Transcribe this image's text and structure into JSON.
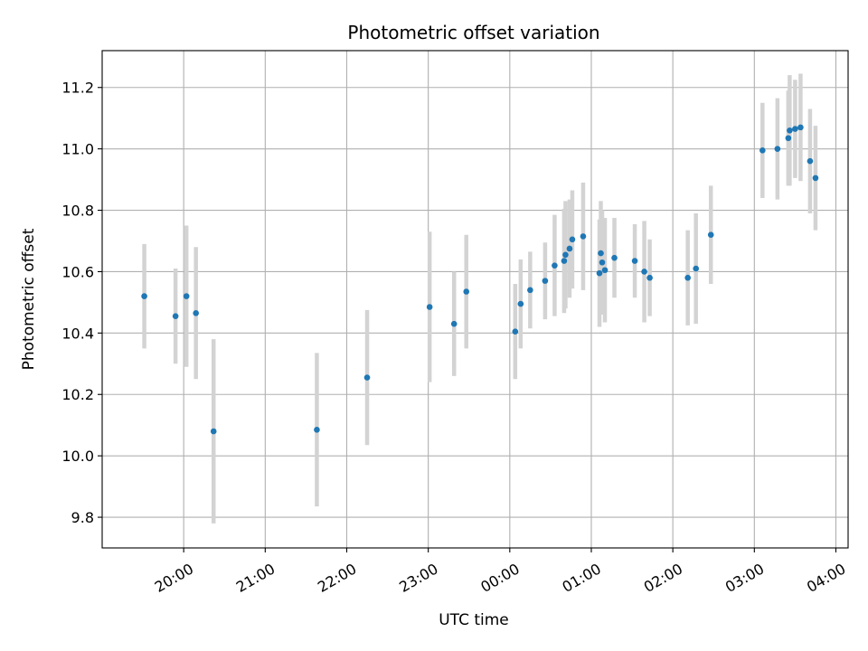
{
  "chart_data": {
    "type": "scatter",
    "title": "Photometric offset variation",
    "xlabel": "UTC time",
    "ylabel": "Photometric offset",
    "x_tick_labels": [
      "20:00",
      "21:00",
      "22:00",
      "23:00",
      "00:00",
      "01:00",
      "02:00",
      "03:00",
      "04:00"
    ],
    "y_tick_labels": [
      "9.8",
      "10.0",
      "10.2",
      "10.4",
      "10.6",
      "10.8",
      "11.0",
      "11.2"
    ],
    "y_ticks": [
      9.8,
      10.0,
      10.2,
      10.4,
      10.6,
      10.8,
      11.0,
      11.2
    ],
    "x_ticks_hours": [
      20,
      21,
      22,
      23,
      24,
      25,
      26,
      27,
      28
    ],
    "xlim_hours": [
      19.0,
      28.15
    ],
    "ylim": [
      9.7,
      11.32
    ],
    "grid": true,
    "point_color": "#1f77b4",
    "errorbar_color": "#d3d3d3",
    "points": [
      {
        "t": "19:31",
        "y": 10.52,
        "err": 0.17
      },
      {
        "t": "19:54",
        "y": 10.455,
        "err": 0.155
      },
      {
        "t": "20:02",
        "y": 10.52,
        "err": 0.23
      },
      {
        "t": "20:09",
        "y": 10.465,
        "err": 0.215
      },
      {
        "t": "20:22",
        "y": 10.08,
        "err": 0.3
      },
      {
        "t": "21:38",
        "y": 10.085,
        "err": 0.25
      },
      {
        "t": "22:15",
        "y": 10.255,
        "err": 0.22
      },
      {
        "t": "23:01",
        "y": 10.485,
        "err": 0.245
      },
      {
        "t": "23:19",
        "y": 10.43,
        "err": 0.17
      },
      {
        "t": "23:28",
        "y": 10.535,
        "err": 0.185
      },
      {
        "t": "00:04",
        "y": 10.405,
        "err": 0.155
      },
      {
        "t": "00:08",
        "y": 10.495,
        "err": 0.145
      },
      {
        "t": "00:15",
        "y": 10.54,
        "err": 0.125
      },
      {
        "t": "00:26",
        "y": 10.57,
        "err": 0.125
      },
      {
        "t": "00:33",
        "y": 10.62,
        "err": 0.165
      },
      {
        "t": "00:40",
        "y": 10.635,
        "err": 0.17
      },
      {
        "t": "00:41",
        "y": 10.655,
        "err": 0.175
      },
      {
        "t": "00:44",
        "y": 10.675,
        "err": 0.16
      },
      {
        "t": "00:46",
        "y": 10.705,
        "err": 0.16
      },
      {
        "t": "00:54",
        "y": 10.715,
        "err": 0.175
      },
      {
        "t": "01:06",
        "y": 10.595,
        "err": 0.175
      },
      {
        "t": "01:07",
        "y": 10.66,
        "err": 0.17
      },
      {
        "t": "01:08",
        "y": 10.63,
        "err": 0.17
      },
      {
        "t": "01:10",
        "y": 10.605,
        "err": 0.17
      },
      {
        "t": "01:17",
        "y": 10.645,
        "err": 0.13
      },
      {
        "t": "01:32",
        "y": 10.635,
        "err": 0.12
      },
      {
        "t": "01:39",
        "y": 10.6,
        "err": 0.165
      },
      {
        "t": "01:43",
        "y": 10.58,
        "err": 0.125
      },
      {
        "t": "02:11",
        "y": 10.58,
        "err": 0.155
      },
      {
        "t": "02:17",
        "y": 10.61,
        "err": 0.18
      },
      {
        "t": "02:28",
        "y": 10.72,
        "err": 0.16
      },
      {
        "t": "03:06",
        "y": 10.995,
        "err": 0.155
      },
      {
        "t": "03:17",
        "y": 11.0,
        "err": 0.165
      },
      {
        "t": "03:25",
        "y": 11.035,
        "err": 0.155
      },
      {
        "t": "03:26",
        "y": 11.06,
        "err": 0.18
      },
      {
        "t": "03:30",
        "y": 11.065,
        "err": 0.16
      },
      {
        "t": "03:34",
        "y": 11.07,
        "err": 0.175
      },
      {
        "t": "03:41",
        "y": 10.96,
        "err": 0.17
      },
      {
        "t": "03:45",
        "y": 10.905,
        "err": 0.17
      }
    ]
  }
}
